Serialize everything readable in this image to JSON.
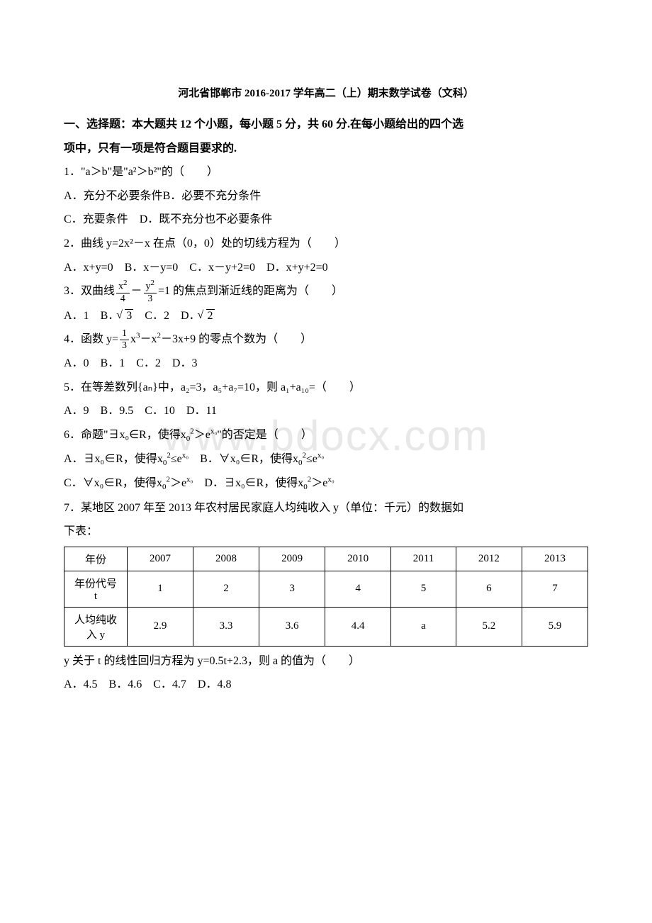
{
  "title": "河北省邯郸市 2016-2017 学年高二（上）期末数学试卷（文科）",
  "section1": {
    "header_line1": "一、选择题：本大题共 12 个小题，每小题 5 分，共 60 分.在每小题给出的四个选",
    "header_line2": "项中，只有一项是符合题目要求的."
  },
  "q1": {
    "text": "1．\"a＞b\"是\"a²＞b²\"的（　　）",
    "optA": "A．充分不必要条件",
    "optB": "B．必要不充分条件",
    "optC": "C．充要条件",
    "optD": "D．既不充分也不必要条件"
  },
  "q2": {
    "text": "2．曲线 y=2x²－x 在点（0，0）处的切线方程为（　　）",
    "opts": "A．x+y=0　B．x－y=0　C．x－y+2=0　D．x+y+2=0"
  },
  "q3": {
    "prefix": "3．双曲线",
    "suffix": "=1 的焦点到渐近线的距离为（　　）",
    "optA": "A．1",
    "optB": "B．",
    "optB_val": "3",
    "optC": "C．2",
    "optD": "D．",
    "optD_val": "2"
  },
  "q4": {
    "prefix": "4．函数 y=",
    "mid": "－3x+9 的零点个数为（　　）",
    "opts": "A．0　B．1　C．2　D．3"
  },
  "q5": {
    "text": "5．在等差数列{aₙ}中，a₂=3，a₅+a₇=10，则 a₁+a₁₀=（　　）",
    "opts": "A．9　B．9.5　C．10　D．11"
  },
  "q6": {
    "prefix": "6．命题\"∃x₀∈R，使得",
    "suffix": "\"的否定是（　　）",
    "optA_pre": "A．∃x₀∈R，使得",
    "optB_pre": "B．∀x₀∈R，使得",
    "optC_pre": "C．∀x₀∈R，使得",
    "optD_pre": "D．∃x₀∈R，使得"
  },
  "q7": {
    "text1": "7．某地区 2007 年至 2013 年农村居民家庭人均纯收入 y（单位：千元）的数据如",
    "text2": "下表：",
    "table": {
      "row1_label": "年份",
      "row1": [
        "2007",
        "2008",
        "2009",
        "2010",
        "2011",
        "2012",
        "2013"
      ],
      "row2_label1": "年份代号",
      "row2_label2": "t",
      "row2": [
        "1",
        "2",
        "3",
        "4",
        "5",
        "6",
        "7"
      ],
      "row3_label1": "人均纯收",
      "row3_label2": "入 y",
      "row3": [
        "2.9",
        "3.3",
        "3.6",
        "4.4",
        "a",
        "5.2",
        "5.9"
      ]
    },
    "text3": "y 关于 t 的线性回归方程为 y=0.5t+2.3，则 a 的值为（　　）",
    "opts": "A．4.5　B．4.6　C．4.7　D．4.8"
  },
  "watermark": "www.bdocx.com"
}
